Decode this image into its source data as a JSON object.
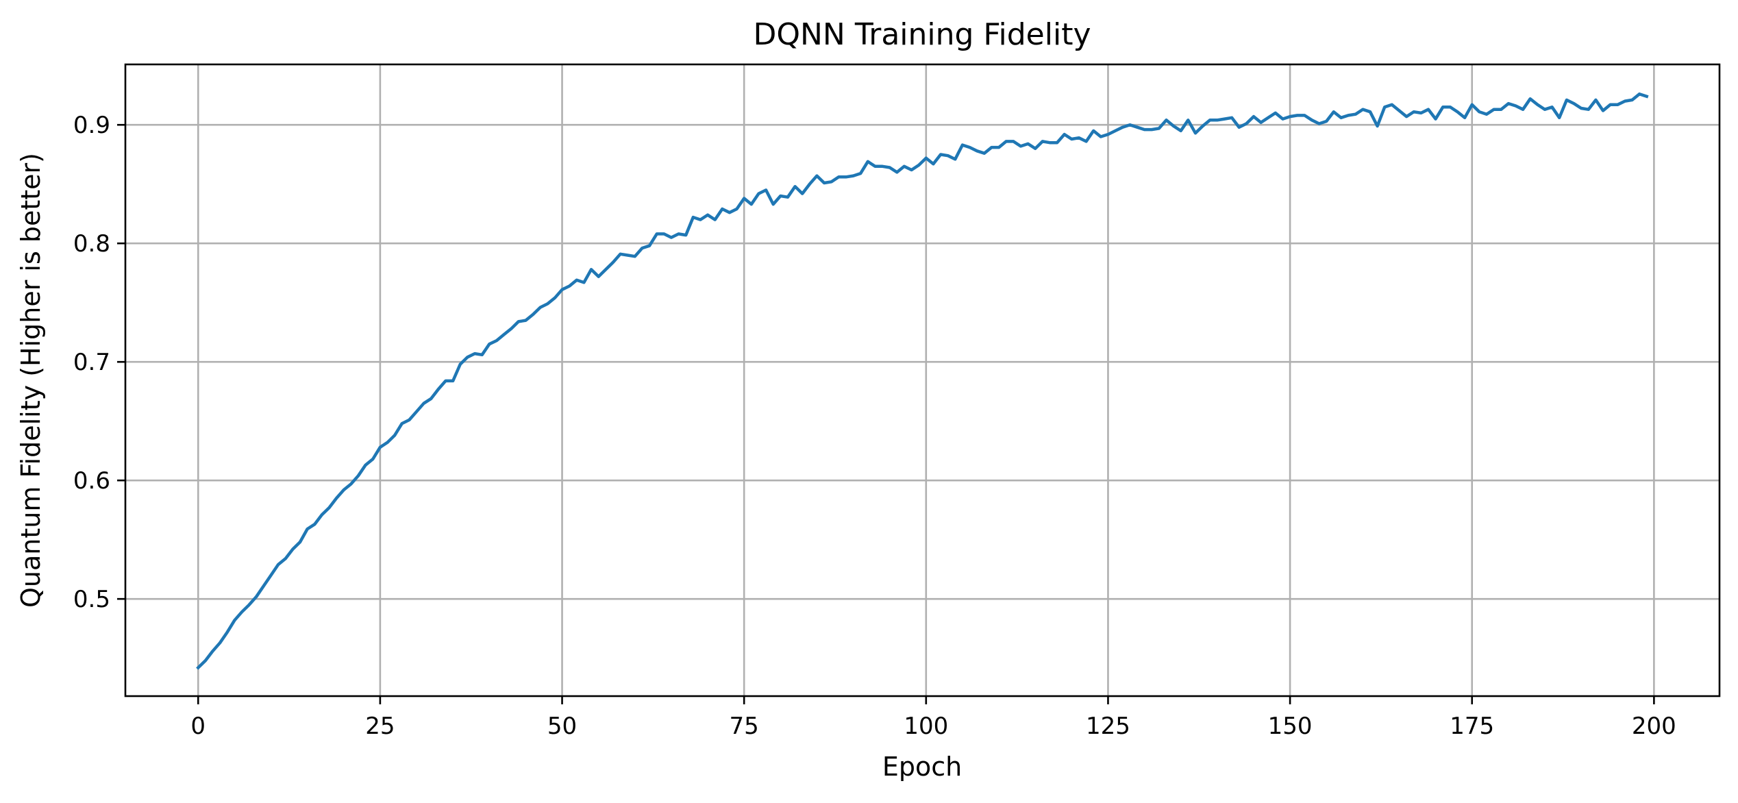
{
  "chart_data": {
    "type": "line",
    "title": "DQNN Training Fidelity",
    "xlabel": "Epoch",
    "ylabel": "Quantum Fidelity (Higher is better)",
    "xlim": [
      -10,
      209
    ],
    "ylim": [
      0.418,
      0.951
    ],
    "xticks": [
      0,
      25,
      50,
      75,
      100,
      125,
      150,
      175,
      200
    ],
    "yticks": [
      0.5,
      0.6,
      0.7,
      0.8,
      0.9
    ],
    "grid": true,
    "color": "#1f77b4",
    "series": [
      {
        "x": [
          0,
          1,
          2,
          3,
          4,
          5,
          6,
          7,
          8,
          9,
          10,
          11,
          12,
          13,
          14,
          15,
          16,
          17,
          18,
          19,
          20,
          21,
          22,
          23,
          24,
          25,
          26,
          27,
          28,
          29,
          30,
          31,
          32,
          33,
          34,
          35,
          36,
          37,
          38,
          39,
          40,
          41,
          42,
          43,
          44,
          45,
          46,
          47,
          48,
          49,
          50,
          51,
          52,
          53,
          54,
          55,
          56,
          57,
          58,
          59,
          60,
          61,
          62,
          63,
          64,
          65,
          66,
          67,
          68,
          69,
          70,
          71,
          72,
          73,
          74,
          75,
          76,
          77,
          78,
          79,
          80,
          81,
          82,
          83,
          84,
          85,
          86,
          87,
          88,
          89,
          90,
          91,
          92,
          93,
          94,
          95,
          96,
          97,
          98,
          99,
          100,
          101,
          102,
          103,
          104,
          105,
          106,
          107,
          108,
          109,
          110,
          111,
          112,
          113,
          114,
          115,
          116,
          117,
          118,
          119,
          120,
          121,
          122,
          123,
          124,
          125,
          126,
          127,
          128,
          129,
          130,
          131,
          132,
          133,
          134,
          135,
          136,
          137,
          138,
          139,
          140,
          141,
          142,
          143,
          144,
          145,
          146,
          147,
          148,
          149,
          150,
          151,
          152,
          153,
          154,
          155,
          156,
          157,
          158,
          159,
          160,
          161,
          162,
          163,
          164,
          165,
          166,
          167,
          168,
          169,
          170,
          171,
          172,
          173,
          174,
          175,
          176,
          177,
          178,
          179,
          180,
          181,
          182,
          183,
          184,
          185,
          186,
          187,
          188,
          189,
          190,
          191,
          192,
          193,
          194,
          195,
          196,
          197,
          198,
          199
        ],
        "values": [
          0.442,
          0.448,
          0.456,
          0.463,
          0.472,
          0.482,
          0.489,
          0.495,
          0.502,
          0.511,
          0.52,
          0.529,
          0.534,
          0.542,
          0.548,
          0.559,
          0.563,
          0.571,
          0.577,
          0.585,
          0.592,
          0.597,
          0.604,
          0.613,
          0.618,
          0.628,
          0.632,
          0.638,
          0.648,
          0.651,
          0.658,
          0.665,
          0.669,
          0.677,
          0.684,
          0.684,
          0.698,
          0.704,
          0.707,
          0.706,
          0.715,
          0.718,
          0.723,
          0.728,
          0.734,
          0.735,
          0.74,
          0.746,
          0.749,
          0.754,
          0.761,
          0.764,
          0.769,
          0.767,
          0.778,
          0.772,
          0.778,
          0.784,
          0.791,
          0.79,
          0.789,
          0.796,
          0.798,
          0.808,
          0.808,
          0.805,
          0.808,
          0.807,
          0.822,
          0.82,
          0.824,
          0.82,
          0.829,
          0.826,
          0.829,
          0.838,
          0.833,
          0.842,
          0.845,
          0.833,
          0.84,
          0.839,
          0.848,
          0.842,
          0.85,
          0.857,
          0.851,
          0.852,
          0.856,
          0.856,
          0.857,
          0.859,
          0.869,
          0.865,
          0.865,
          0.864,
          0.86,
          0.865,
          0.862,
          0.866,
          0.872,
          0.867,
          0.875,
          0.874,
          0.871,
          0.883,
          0.881,
          0.878,
          0.876,
          0.881,
          0.881,
          0.886,
          0.886,
          0.882,
          0.884,
          0.88,
          0.886,
          0.885,
          0.885,
          0.892,
          0.888,
          0.889,
          0.886,
          0.895,
          0.89,
          0.892,
          0.895,
          0.898,
          0.9,
          0.898,
          0.896,
          0.896,
          0.897,
          0.904,
          0.899,
          0.895,
          0.904,
          0.893,
          0.899,
          0.904,
          0.904,
          0.905,
          0.906,
          0.898,
          0.901,
          0.907,
          0.902,
          0.906,
          0.91,
          0.905,
          0.907,
          0.908,
          0.908,
          0.904,
          0.901,
          0.903,
          0.911,
          0.906,
          0.908,
          0.909,
          0.913,
          0.911,
          0.899,
          0.915,
          0.917,
          0.912,
          0.907,
          0.911,
          0.91,
          0.913,
          0.905,
          0.915,
          0.915,
          0.911,
          0.906,
          0.917,
          0.911,
          0.909,
          0.913,
          0.913,
          0.918,
          0.916,
          0.913,
          0.922,
          0.917,
          0.913,
          0.915,
          0.906,
          0.921,
          0.918,
          0.914,
          0.913,
          0.921,
          0.912,
          0.917,
          0.917,
          0.92,
          0.921,
          0.926,
          0.924
        ]
      }
    ]
  }
}
